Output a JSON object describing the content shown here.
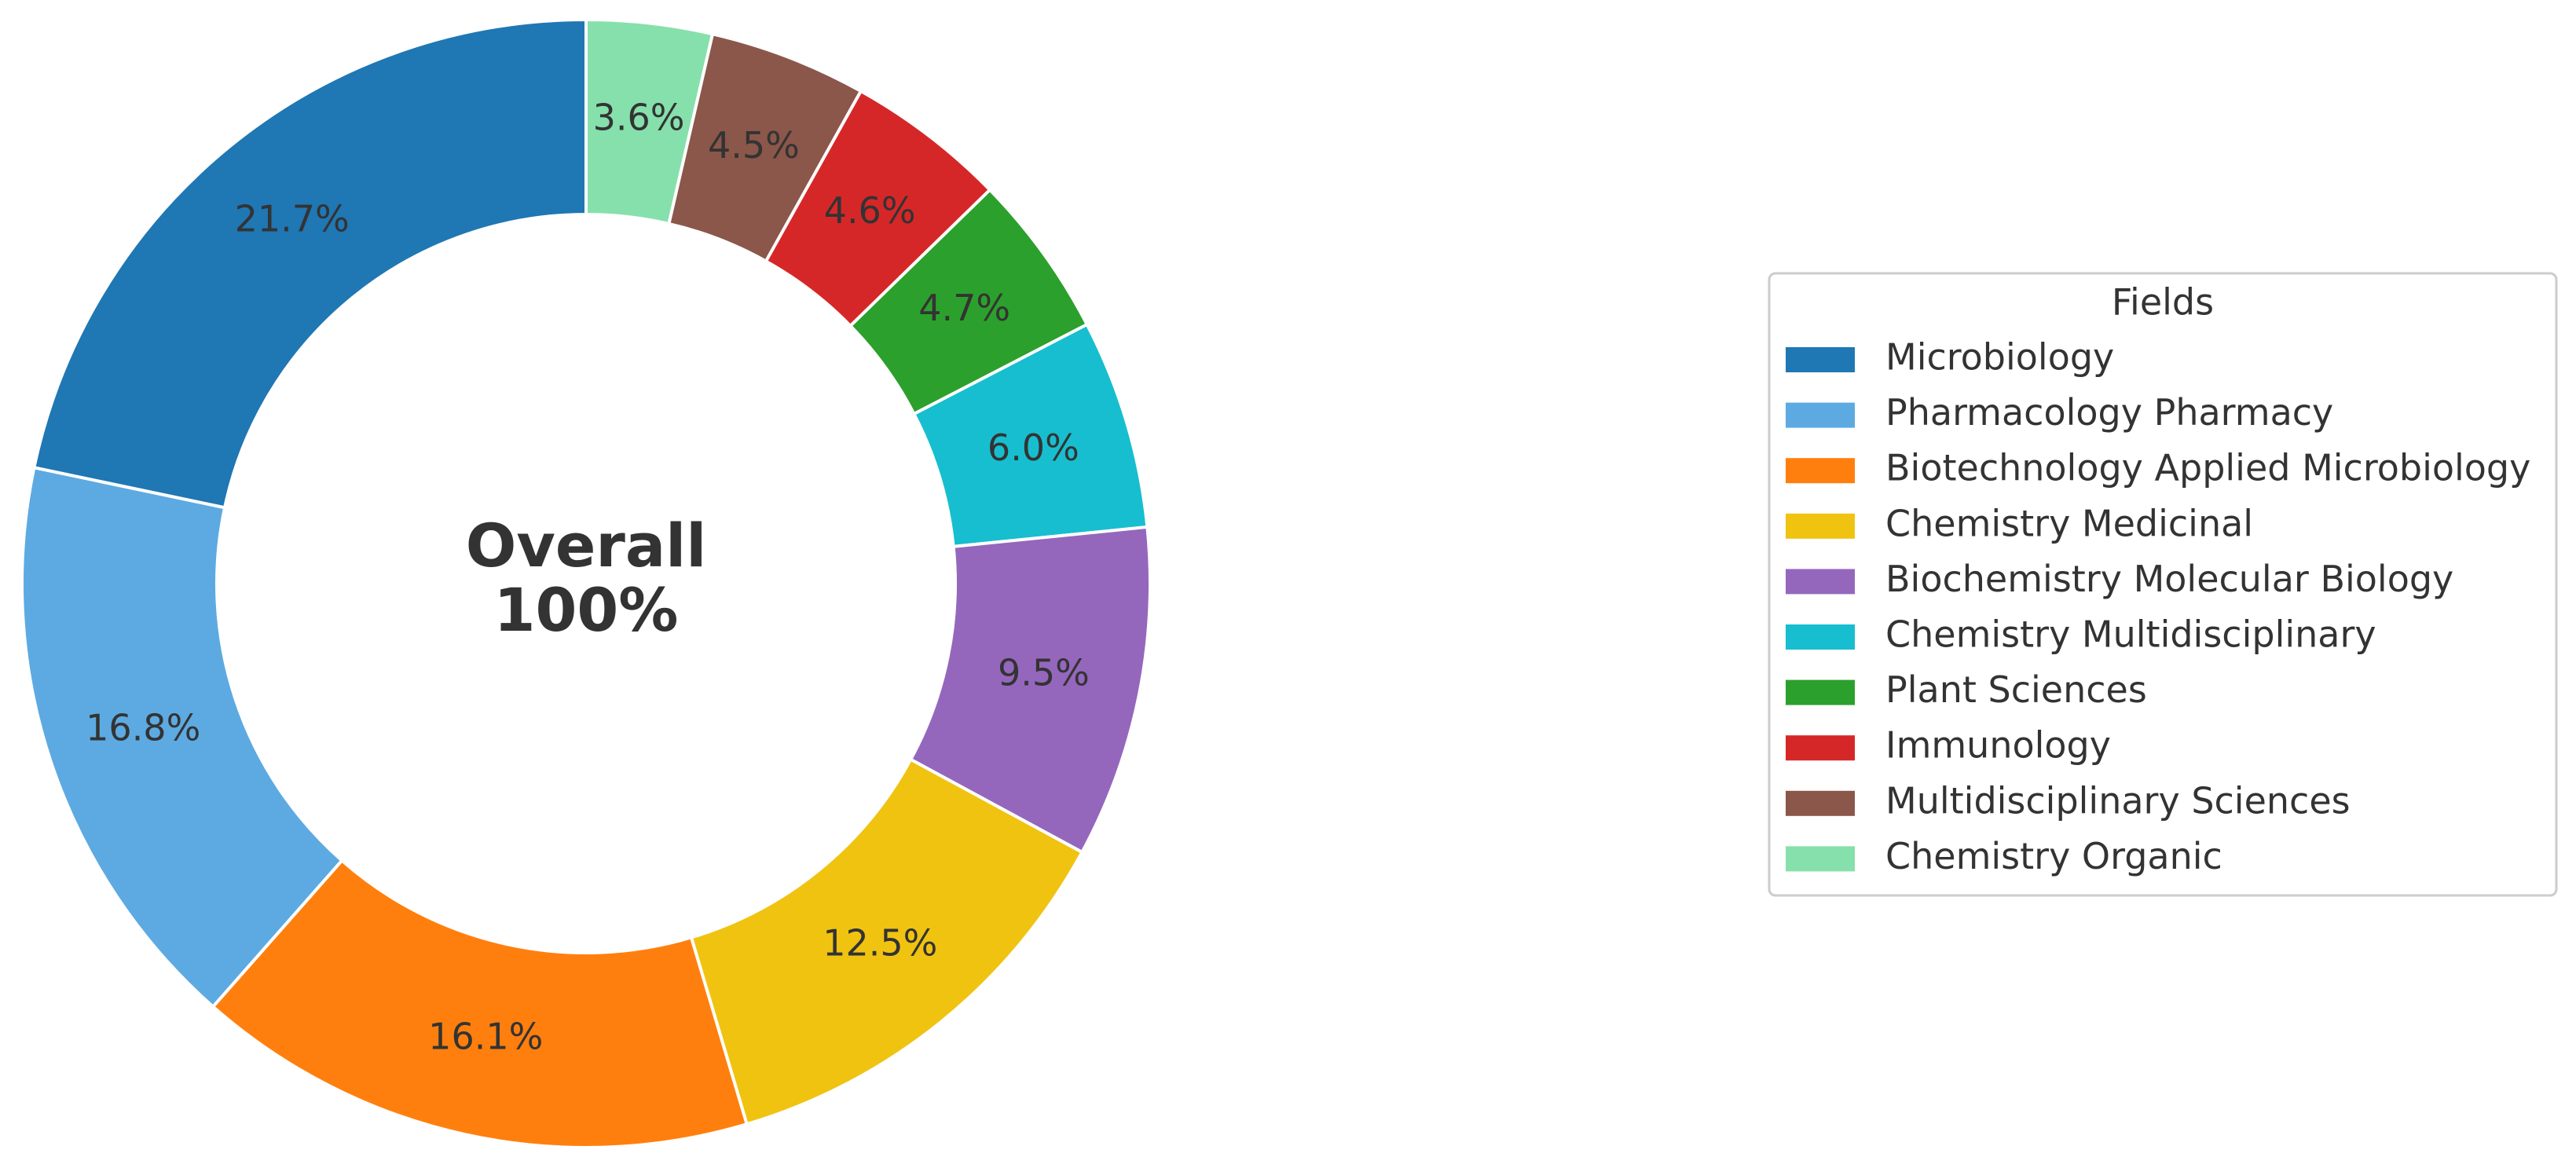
{
  "chart_data": {
    "type": "pie",
    "donut": true,
    "center_text": [
      "Overall",
      "100%"
    ],
    "legend": {
      "title": "Fields",
      "placement": "right"
    },
    "slices": [
      {
        "label": "Chemistry Organic",
        "value": 3.6,
        "value_label": "3.6%",
        "color": "#86e0ab"
      },
      {
        "label": "Multidisciplinary Sciences",
        "value": 4.5,
        "value_label": "4.5%",
        "color": "#8b574a"
      },
      {
        "label": "Immunology",
        "value": 4.6,
        "value_label": "4.6%",
        "color": "#d62728"
      },
      {
        "label": "Plant Sciences",
        "value": 4.7,
        "value_label": "4.7%",
        "color": "#2ca02c"
      },
      {
        "label": "Chemistry Multidisciplinary",
        "value": 6.0,
        "value_label": "6.0%",
        "color": "#17becf"
      },
      {
        "label": "Biochemistry Molecular Biology",
        "value": 9.5,
        "value_label": "9.5%",
        "color": "#9467bd"
      },
      {
        "label": "Chemistry Medicinal",
        "value": 12.5,
        "value_label": "12.5%",
        "color": "#f0c311"
      },
      {
        "label": "Biotechnology Applied Microbiology",
        "value": 16.1,
        "value_label": "16.1%",
        "color": "#ff7f0e"
      },
      {
        "label": "Pharmacology Pharmacy",
        "value": 16.8,
        "value_label": "16.8%",
        "color": "#5daae2"
      },
      {
        "label": "Microbiology",
        "value": 21.7,
        "value_label": "21.7%",
        "color": "#1f77b4"
      }
    ],
    "legend_order": [
      "Microbiology",
      "Pharmacology Pharmacy",
      "Biotechnology Applied Microbiology",
      "Chemistry Medicinal",
      "Biochemistry Molecular Biology",
      "Chemistry Multidisciplinary",
      "Plant Sciences",
      "Immunology",
      "Multidisciplinary Sciences",
      "Chemistry Organic"
    ]
  }
}
